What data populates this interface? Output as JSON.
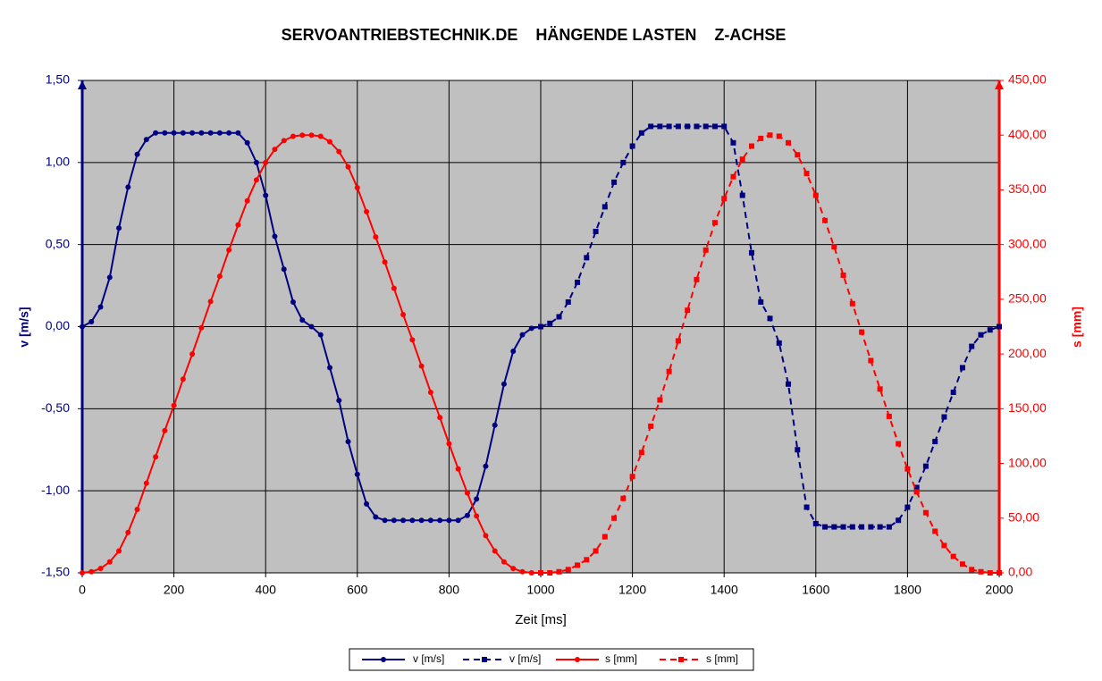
{
  "chart_data": {
    "type": "line",
    "title": "SERVOANTRIEBSTECHNIK.DE    HÄNGENDE LASTEN    Z-ACHSE",
    "xlabel": "Zeit [ms]",
    "ylabel": "v [m/s]",
    "y2label": "s [mm]",
    "xlim": [
      0,
      2000
    ],
    "xticks": [
      0,
      200,
      400,
      600,
      800,
      1000,
      1200,
      1400,
      1600,
      1800,
      2000
    ],
    "ylim": [
      -1.5,
      1.5
    ],
    "yticks": [
      {
        "value": -1.5,
        "label": "-1,50"
      },
      {
        "value": -1,
        "label": "-1,00"
      },
      {
        "value": -0.5,
        "label": "-0,50"
      },
      {
        "value": 0,
        "label": "0,00"
      },
      {
        "value": 0.5,
        "label": "0,50"
      },
      {
        "value": 1,
        "label": "1,00"
      },
      {
        "value": 1.5,
        "label": "1,50"
      }
    ],
    "y2lim": [
      0,
      450
    ],
    "y2ticks": [
      {
        "value": 0,
        "label": "0,00"
      },
      {
        "value": 50,
        "label": "50,00"
      },
      {
        "value": 100,
        "label": "100,00"
      },
      {
        "value": 150,
        "label": "150,00"
      },
      {
        "value": 200,
        "label": "200,00"
      },
      {
        "value": 250,
        "label": "250,00"
      },
      {
        "value": 300,
        "label": "300,00"
      },
      {
        "value": 350,
        "label": "350,00"
      },
      {
        "value": 400,
        "label": "400,00"
      },
      {
        "value": 450,
        "label": "450,00"
      }
    ],
    "grid": true,
    "legend": "bottom",
    "series": [
      {
        "name": "v [m/s]",
        "color": "#000080",
        "dashed": false,
        "marker": "circle",
        "x": [
          0,
          20,
          40,
          60,
          80,
          100,
          120,
          140,
          160,
          180,
          200,
          220,
          240,
          260,
          280,
          300,
          320,
          340,
          360,
          380,
          400,
          420,
          440,
          460,
          480,
          500,
          520,
          540,
          560,
          580,
          600,
          620,
          640,
          660,
          680,
          700,
          720,
          740,
          760,
          780,
          800,
          820,
          840,
          860,
          880,
          900,
          920,
          940,
          960,
          980,
          1000
        ],
        "values": [
          0,
          0.03,
          0.12,
          0.3,
          0.6,
          0.85,
          1.05,
          1.14,
          1.18,
          1.18,
          1.18,
          1.18,
          1.18,
          1.18,
          1.18,
          1.18,
          1.18,
          1.18,
          1.12,
          1.0,
          0.8,
          0.55,
          0.35,
          0.15,
          0.04,
          0,
          -0.05,
          -0.25,
          -0.45,
          -0.7,
          -0.9,
          -1.08,
          -1.16,
          -1.18,
          -1.18,
          -1.18,
          -1.18,
          -1.18,
          -1.18,
          -1.18,
          -1.18,
          -1.18,
          -1.15,
          -1.05,
          -0.85,
          -0.6,
          -0.35,
          -0.15,
          -0.05,
          -0.01,
          0
        ]
      },
      {
        "name": "v [m/s]",
        "color": "#000080",
        "dashed": true,
        "marker": "square",
        "x": [
          1000,
          1020,
          1040,
          1060,
          1080,
          1100,
          1120,
          1140,
          1160,
          1180,
          1200,
          1220,
          1240,
          1260,
          1280,
          1300,
          1320,
          1340,
          1360,
          1380,
          1400,
          1420,
          1440,
          1460,
          1480,
          1500,
          1520,
          1540,
          1560,
          1580,
          1600,
          1620,
          1640,
          1660,
          1680,
          1700,
          1720,
          1740,
          1760,
          1780,
          1800,
          1820,
          1840,
          1860,
          1880,
          1900,
          1920,
          1940,
          1960,
          1980,
          2000
        ],
        "values": [
          0,
          0.02,
          0.06,
          0.15,
          0.27,
          0.42,
          0.58,
          0.73,
          0.88,
          1.0,
          1.1,
          1.18,
          1.22,
          1.22,
          1.22,
          1.22,
          1.22,
          1.22,
          1.22,
          1.22,
          1.22,
          1.12,
          0.8,
          0.45,
          0.15,
          0.05,
          -0.1,
          -0.35,
          -0.75,
          -1.1,
          -1.2,
          -1.22,
          -1.22,
          -1.22,
          -1.22,
          -1.22,
          -1.22,
          -1.22,
          -1.22,
          -1.18,
          -1.1,
          -0.98,
          -0.85,
          -0.7,
          -0.55,
          -0.4,
          -0.25,
          -0.12,
          -0.05,
          -0.02,
          0
        ]
      },
      {
        "name": "s [mm]",
        "color": "#ff0000",
        "dashed": false,
        "marker": "circle",
        "axis": "y2",
        "x": [
          0,
          20,
          40,
          60,
          80,
          100,
          120,
          140,
          160,
          180,
          200,
          220,
          240,
          260,
          280,
          300,
          320,
          340,
          360,
          380,
          400,
          420,
          440,
          460,
          480,
          500,
          520,
          540,
          560,
          580,
          600,
          620,
          640,
          660,
          680,
          700,
          720,
          740,
          760,
          780,
          800,
          820,
          840,
          860,
          880,
          900,
          920,
          940,
          960,
          980,
          1000
        ],
        "values": [
          0,
          1,
          4,
          10,
          20,
          37,
          58,
          82,
          106,
          130,
          153,
          177,
          200,
          224,
          248,
          271,
          295,
          318,
          340,
          359,
          375,
          387,
          395,
          399,
          400,
          400,
          399,
          394,
          385,
          371,
          352,
          330,
          307,
          284,
          260,
          236,
          213,
          189,
          165,
          142,
          118,
          95,
          73,
          52,
          34,
          20,
          10,
          4,
          1,
          0,
          0
        ]
      },
      {
        "name": "s [mm]",
        "color": "#ff0000",
        "dashed": true,
        "marker": "square",
        "axis": "y2",
        "x": [
          1000,
          1020,
          1040,
          1060,
          1080,
          1100,
          1120,
          1140,
          1160,
          1180,
          1200,
          1220,
          1240,
          1260,
          1280,
          1300,
          1320,
          1340,
          1360,
          1380,
          1400,
          1420,
          1440,
          1460,
          1480,
          1500,
          1520,
          1540,
          1560,
          1580,
          1600,
          1620,
          1640,
          1660,
          1680,
          1700,
          1720,
          1740,
          1760,
          1780,
          1800,
          1820,
          1840,
          1860,
          1880,
          1900,
          1920,
          1940,
          1960,
          1980,
          2000
        ],
        "values": [
          0,
          0,
          1,
          3,
          7,
          12,
          20,
          33,
          50,
          68,
          88,
          110,
          134,
          158,
          184,
          212,
          240,
          268,
          295,
          320,
          342,
          362,
          378,
          390,
          397,
          400,
          399,
          393,
          382,
          365,
          345,
          322,
          298,
          272,
          246,
          220,
          194,
          168,
          143,
          118,
          95,
          74,
          55,
          38,
          25,
          15,
          8,
          3,
          1,
          0,
          0
        ]
      }
    ]
  }
}
